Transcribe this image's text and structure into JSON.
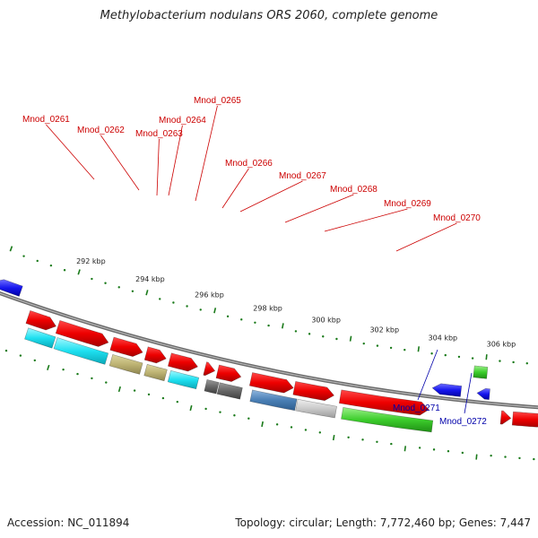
{
  "title": "Methylobacterium nodulans ORS 2060, complete genome",
  "footer": {
    "accession": "Accession: NC_011894",
    "meta": "Topology: circular; Length: 7,772,460 bp; Genes: 7,447"
  },
  "colors": {
    "forward_label": "#cc0000",
    "reverse_label": "#0000aa",
    "cds": "#ff0000",
    "reverse_gene": "#0000ee",
    "tick": "#1a7a1a",
    "backbone": "#888888"
  },
  "scale_labels": [
    "292 kbp",
    "294 kbp",
    "296 kbp",
    "298 kbp",
    "300 kbp",
    "302 kbp",
    "304 kbp",
    "306 kbp"
  ],
  "forward_genes": [
    "Mnod_0261",
    "Mnod_0262",
    "Mnod_0263",
    "Mnod_0264",
    "Mnod_0265",
    "Mnod_0266",
    "Mnod_0267",
    "Mnod_0268",
    "Mnod_0269",
    "Mnod_0270"
  ],
  "reverse_genes": [
    "Mnod_0271",
    "Mnod_0272"
  ]
}
